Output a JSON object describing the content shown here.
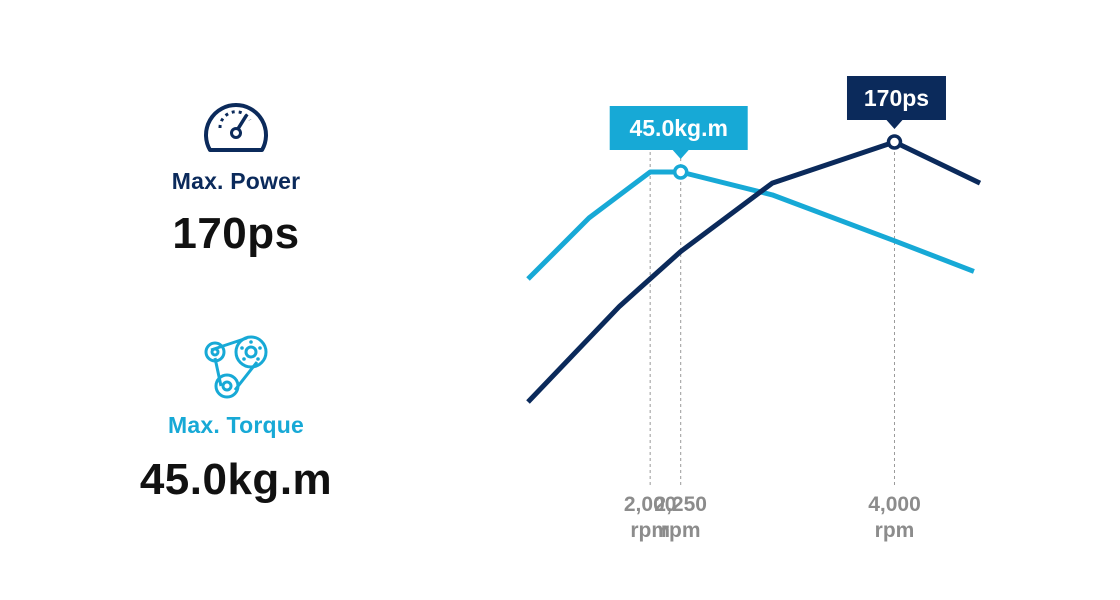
{
  "stats": {
    "power": {
      "label": "Max. Power",
      "value": "170ps",
      "icon": "speedometer-icon"
    },
    "torque": {
      "label": "Max. Torque",
      "value": "45.0kg.m",
      "icon": "belt-pulley-icon"
    }
  },
  "colors": {
    "power": "#0b2a5b",
    "torque": "#17a9d6",
    "tick_text": "#8c8c8c",
    "guide": "#9a9a9a"
  },
  "chart_data": {
    "type": "line",
    "x_ticks": [
      {
        "value": 2000,
        "label": "2,000",
        "unit": "rpm"
      },
      {
        "value": 2250,
        "label": "2,250",
        "unit": "rpm"
      },
      {
        "value": 4000,
        "label": "4,000",
        "unit": "rpm"
      }
    ],
    "xlim": [
      1000,
      4700
    ],
    "grid": false,
    "series": [
      {
        "key": "torque",
        "x": [
          1000,
          1500,
          2000,
          2250,
          3000,
          4000,
          4650
        ],
        "y": [
          38.0,
          42.0,
          45.0,
          45.0,
          43.5,
          40.5,
          38.5
        ],
        "peak_x": 2250,
        "peak_label": "45.0kg.m"
      },
      {
        "key": "power",
        "x": [
          1000,
          1750,
          2250,
          3000,
          4000,
          4700
        ],
        "y": [
          75,
          110,
          130,
          155,
          170,
          155
        ],
        "peak_x": 4000,
        "peak_label": "170ps"
      }
    ]
  }
}
